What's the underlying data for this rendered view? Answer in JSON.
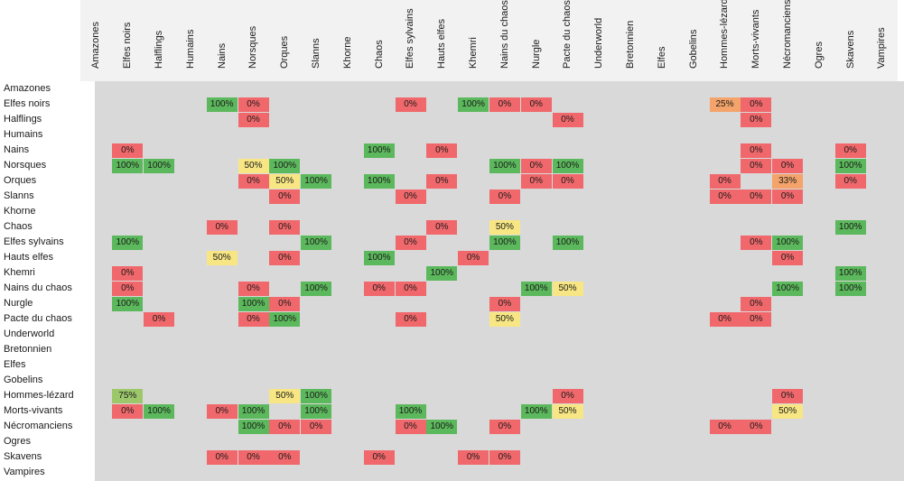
{
  "teams": [
    "Amazones",
    "Elfes noirs",
    "Halflings",
    "Humains",
    "Nains",
    "Norsques",
    "Orques",
    "Slanns",
    "Khorne",
    "Chaos",
    "Elfes sylvains",
    "Hauts elfes",
    "Khemri",
    "Nains du chaos",
    "Nurgle",
    "Pacte du chaos",
    "Underworld",
    "Bretonnien",
    "Elfes",
    "Gobelins",
    "Hommes-lézard",
    "Morts-vivants",
    "Nécromanciens",
    "Ogres",
    "Skavens",
    "Vampires"
  ],
  "colors": {
    "green": "#5cb85c",
    "red": "#f0686b",
    "yellow": "#f7e683",
    "orange": "#f4a46a",
    "lightgreen": "#9dc76b",
    "grid": "#d9d9d9",
    "header": "#f2f2f2"
  },
  "cells": [
    {
      "r": 1,
      "c": 4,
      "v": "100%",
      "color": "green"
    },
    {
      "r": 1,
      "c": 5,
      "v": "0%",
      "color": "red"
    },
    {
      "r": 1,
      "c": 10,
      "v": "0%",
      "color": "red"
    },
    {
      "r": 1,
      "c": 12,
      "v": "100%",
      "color": "green"
    },
    {
      "r": 1,
      "c": 13,
      "v": "0%",
      "color": "red"
    },
    {
      "r": 1,
      "c": 14,
      "v": "0%",
      "color": "red"
    },
    {
      "r": 1,
      "c": 20,
      "v": "25%",
      "color": "orange"
    },
    {
      "r": 1,
      "c": 21,
      "v": "0%",
      "color": "red"
    },
    {
      "r": 2,
      "c": 5,
      "v": "0%",
      "color": "red"
    },
    {
      "r": 2,
      "c": 15,
      "v": "0%",
      "color": "red"
    },
    {
      "r": 2,
      "c": 21,
      "v": "0%",
      "color": "red"
    },
    {
      "r": 4,
      "c": 1,
      "v": "0%",
      "color": "red"
    },
    {
      "r": 4,
      "c": 9,
      "v": "100%",
      "color": "green"
    },
    {
      "r": 4,
      "c": 11,
      "v": "0%",
      "color": "red"
    },
    {
      "r": 4,
      "c": 21,
      "v": "0%",
      "color": "red"
    },
    {
      "r": 4,
      "c": 24,
      "v": "0%",
      "color": "red"
    },
    {
      "r": 5,
      "c": 1,
      "v": "100%",
      "color": "green"
    },
    {
      "r": 5,
      "c": 2,
      "v": "100%",
      "color": "green"
    },
    {
      "r": 5,
      "c": 5,
      "v": "50%",
      "color": "yellow"
    },
    {
      "r": 5,
      "c": 6,
      "v": "100%",
      "color": "green"
    },
    {
      "r": 5,
      "c": 13,
      "v": "100%",
      "color": "green"
    },
    {
      "r": 5,
      "c": 14,
      "v": "0%",
      "color": "red"
    },
    {
      "r": 5,
      "c": 15,
      "v": "100%",
      "color": "green"
    },
    {
      "r": 5,
      "c": 21,
      "v": "0%",
      "color": "red"
    },
    {
      "r": 5,
      "c": 22,
      "v": "0%",
      "color": "red"
    },
    {
      "r": 5,
      "c": 24,
      "v": "100%",
      "color": "green"
    },
    {
      "r": 6,
      "c": 5,
      "v": "0%",
      "color": "red"
    },
    {
      "r": 6,
      "c": 6,
      "v": "50%",
      "color": "yellow"
    },
    {
      "r": 6,
      "c": 7,
      "v": "100%",
      "color": "green"
    },
    {
      "r": 6,
      "c": 9,
      "v": "100%",
      "color": "green"
    },
    {
      "r": 6,
      "c": 11,
      "v": "0%",
      "color": "red"
    },
    {
      "r": 6,
      "c": 14,
      "v": "0%",
      "color": "red"
    },
    {
      "r": 6,
      "c": 15,
      "v": "0%",
      "color": "red"
    },
    {
      "r": 6,
      "c": 20,
      "v": "0%",
      "color": "red"
    },
    {
      "r": 6,
      "c": 22,
      "v": "33%",
      "color": "orange"
    },
    {
      "r": 6,
      "c": 24,
      "v": "0%",
      "color": "red"
    },
    {
      "r": 7,
      "c": 6,
      "v": "0%",
      "color": "red"
    },
    {
      "r": 7,
      "c": 10,
      "v": "0%",
      "color": "red"
    },
    {
      "r": 7,
      "c": 13,
      "v": "0%",
      "color": "red"
    },
    {
      "r": 7,
      "c": 20,
      "v": "0%",
      "color": "red"
    },
    {
      "r": 7,
      "c": 21,
      "v": "0%",
      "color": "red"
    },
    {
      "r": 7,
      "c": 22,
      "v": "0%",
      "color": "red"
    },
    {
      "r": 9,
      "c": 4,
      "v": "0%",
      "color": "red"
    },
    {
      "r": 9,
      "c": 6,
      "v": "0%",
      "color": "red"
    },
    {
      "r": 9,
      "c": 11,
      "v": "0%",
      "color": "red"
    },
    {
      "r": 9,
      "c": 13,
      "v": "50%",
      "color": "yellow"
    },
    {
      "r": 9,
      "c": 24,
      "v": "100%",
      "color": "green"
    },
    {
      "r": 10,
      "c": 1,
      "v": "100%",
      "color": "green"
    },
    {
      "r": 10,
      "c": 7,
      "v": "100%",
      "color": "green"
    },
    {
      "r": 10,
      "c": 10,
      "v": "0%",
      "color": "red"
    },
    {
      "r": 10,
      "c": 13,
      "v": "100%",
      "color": "green"
    },
    {
      "r": 10,
      "c": 15,
      "v": "100%",
      "color": "green"
    },
    {
      "r": 10,
      "c": 21,
      "v": "0%",
      "color": "red"
    },
    {
      "r": 10,
      "c": 22,
      "v": "100%",
      "color": "green"
    },
    {
      "r": 11,
      "c": 4,
      "v": "50%",
      "color": "yellow"
    },
    {
      "r": 11,
      "c": 6,
      "v": "0%",
      "color": "red"
    },
    {
      "r": 11,
      "c": 9,
      "v": "100%",
      "color": "green"
    },
    {
      "r": 11,
      "c": 12,
      "v": "0%",
      "color": "red"
    },
    {
      "r": 11,
      "c": 22,
      "v": "0%",
      "color": "red"
    },
    {
      "r": 12,
      "c": 1,
      "v": "0%",
      "color": "red"
    },
    {
      "r": 12,
      "c": 11,
      "v": "100%",
      "color": "green"
    },
    {
      "r": 12,
      "c": 24,
      "v": "100%",
      "color": "green"
    },
    {
      "r": 13,
      "c": 1,
      "v": "0%",
      "color": "red"
    },
    {
      "r": 13,
      "c": 5,
      "v": "0%",
      "color": "red"
    },
    {
      "r": 13,
      "c": 7,
      "v": "100%",
      "color": "green"
    },
    {
      "r": 13,
      "c": 9,
      "v": "0%",
      "color": "red"
    },
    {
      "r": 13,
      "c": 10,
      "v": "0%",
      "color": "red"
    },
    {
      "r": 13,
      "c": 14,
      "v": "100%",
      "color": "green"
    },
    {
      "r": 13,
      "c": 15,
      "v": "50%",
      "color": "yellow"
    },
    {
      "r": 13,
      "c": 22,
      "v": "100%",
      "color": "green"
    },
    {
      "r": 13,
      "c": 24,
      "v": "100%",
      "color": "green"
    },
    {
      "r": 14,
      "c": 1,
      "v": "100%",
      "color": "green"
    },
    {
      "r": 14,
      "c": 5,
      "v": "100%",
      "color": "green"
    },
    {
      "r": 14,
      "c": 6,
      "v": "0%",
      "color": "red"
    },
    {
      "r": 14,
      "c": 13,
      "v": "0%",
      "color": "red"
    },
    {
      "r": 14,
      "c": 21,
      "v": "0%",
      "color": "red"
    },
    {
      "r": 15,
      "c": 2,
      "v": "0%",
      "color": "red"
    },
    {
      "r": 15,
      "c": 5,
      "v": "0%",
      "color": "red"
    },
    {
      "r": 15,
      "c": 6,
      "v": "100%",
      "color": "green"
    },
    {
      "r": 15,
      "c": 10,
      "v": "0%",
      "color": "red"
    },
    {
      "r": 15,
      "c": 13,
      "v": "50%",
      "color": "yellow"
    },
    {
      "r": 15,
      "c": 20,
      "v": "0%",
      "color": "red"
    },
    {
      "r": 15,
      "c": 21,
      "v": "0%",
      "color": "red"
    },
    {
      "r": 20,
      "c": 1,
      "v": "75%",
      "color": "lightgreen"
    },
    {
      "r": 20,
      "c": 6,
      "v": "50%",
      "color": "yellow"
    },
    {
      "r": 20,
      "c": 7,
      "v": "100%",
      "color": "green"
    },
    {
      "r": 20,
      "c": 15,
      "v": "0%",
      "color": "red"
    },
    {
      "r": 20,
      "c": 22,
      "v": "0%",
      "color": "red"
    },
    {
      "r": 21,
      "c": 1,
      "v": "0%",
      "color": "red"
    },
    {
      "r": 21,
      "c": 2,
      "v": "100%",
      "color": "green"
    },
    {
      "r": 21,
      "c": 4,
      "v": "0%",
      "color": "red"
    },
    {
      "r": 21,
      "c": 5,
      "v": "100%",
      "color": "green"
    },
    {
      "r": 21,
      "c": 7,
      "v": "100%",
      "color": "green"
    },
    {
      "r": 21,
      "c": 10,
      "v": "100%",
      "color": "green"
    },
    {
      "r": 21,
      "c": 14,
      "v": "100%",
      "color": "green"
    },
    {
      "r": 21,
      "c": 15,
      "v": "50%",
      "color": "yellow"
    },
    {
      "r": 21,
      "c": 22,
      "v": "50%",
      "color": "yellow"
    },
    {
      "r": 22,
      "c": 5,
      "v": "100%",
      "color": "green"
    },
    {
      "r": 22,
      "c": 6,
      "v": "0%",
      "color": "red"
    },
    {
      "r": 22,
      "c": 7,
      "v": "0%",
      "color": "red"
    },
    {
      "r": 22,
      "c": 10,
      "v": "0%",
      "color": "red"
    },
    {
      "r": 22,
      "c": 11,
      "v": "100%",
      "color": "green"
    },
    {
      "r": 22,
      "c": 13,
      "v": "0%",
      "color": "red"
    },
    {
      "r": 22,
      "c": 20,
      "v": "0%",
      "color": "red"
    },
    {
      "r": 22,
      "c": 21,
      "v": "0%",
      "color": "red"
    },
    {
      "r": 24,
      "c": 4,
      "v": "0%",
      "color": "red"
    },
    {
      "r": 24,
      "c": 5,
      "v": "0%",
      "color": "red"
    },
    {
      "r": 24,
      "c": 6,
      "v": "0%",
      "color": "red"
    },
    {
      "r": 24,
      "c": 9,
      "v": "0%",
      "color": "red"
    },
    {
      "r": 24,
      "c": 12,
      "v": "0%",
      "color": "red"
    },
    {
      "r": 24,
      "c": 13,
      "v": "0%",
      "color": "red"
    }
  ]
}
